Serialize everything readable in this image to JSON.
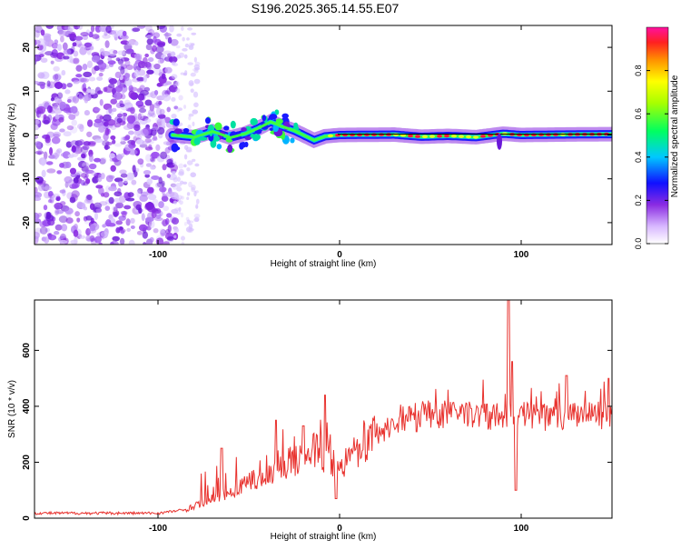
{
  "title": "S196.2025.365.14.55.E07",
  "colors": {
    "line": "#e8322e",
    "frame": "#000000"
  },
  "chart_data": [
    {
      "type": "heatmap",
      "name": "spectrogram",
      "xlabel": "Height of straight line (km)",
      "ylabel": "Frequency (Hz)",
      "xlim": [
        -168,
        150
      ],
      "ylim": [
        -25,
        25
      ],
      "xticks": [
        -100,
        0,
        100
      ],
      "xtick_labels": [
        "-100",
        "0",
        "100"
      ],
      "yticks": [
        -20,
        -10,
        0,
        10,
        20
      ],
      "ytick_labels": [
        "-20",
        "-10",
        "0",
        "10",
        "20"
      ],
      "colorbar": {
        "label": "Normalized spectral amplitude",
        "range": [
          0,
          1
        ],
        "ticks": [
          0.0,
          0.2,
          0.4,
          0.6,
          0.8
        ],
        "tick_labels": [
          "0.0",
          "0.2",
          "0.4",
          "0.6",
          "0.8"
        ]
      },
      "ridge": [
        [
          -92,
          0.0
        ],
        [
          -80,
          -0.5
        ],
        [
          -70,
          0.8
        ],
        [
          -60,
          -0.6
        ],
        [
          -52,
          0.3
        ],
        [
          -45,
          1.5
        ],
        [
          -38,
          3.0
        ],
        [
          -32,
          2.0
        ],
        [
          -25,
          1.0
        ],
        [
          -20,
          0.0
        ],
        [
          -14,
          -1.2
        ],
        [
          -8,
          -0.3
        ],
        [
          0,
          0.0
        ],
        [
          30,
          0.1
        ],
        [
          45,
          -0.4
        ],
        [
          60,
          -0.2
        ],
        [
          75,
          -0.5
        ],
        [
          90,
          0.3
        ],
        [
          100,
          0.0
        ],
        [
          120,
          0.1
        ],
        [
          150,
          0.2
        ]
      ]
    },
    {
      "type": "line",
      "name": "snr",
      "xlabel": "Height of straight line (km)",
      "ylabel": "SNR (10 * v/v)",
      "xlim": [
        -168,
        150
      ],
      "ylim": [
        0,
        780
      ],
      "xticks": [
        -100,
        0,
        100
      ],
      "xtick_labels": [
        "-100",
        "0",
        "100"
      ],
      "yticks": [
        0,
        200,
        400,
        600
      ],
      "ytick_labels": [
        "0",
        "200",
        "400",
        "600"
      ],
      "series": [
        {
          "name": "SNR",
          "baseline": [
            [
              -168,
              18
            ],
            [
              -100,
              18
            ],
            [
              -85,
              30
            ],
            [
              -70,
              70
            ],
            [
              -55,
              110
            ],
            [
              -40,
              160
            ],
            [
              -25,
              200
            ],
            [
              -12,
              250
            ],
            [
              -5,
              190
            ],
            [
              0,
              180
            ],
            [
              8,
              240
            ],
            [
              20,
              300
            ],
            [
              35,
              350
            ],
            [
              55,
              370
            ],
            [
              75,
              370
            ],
            [
              90,
              360
            ],
            [
              100,
              365
            ],
            [
              120,
              360
            ],
            [
              150,
              370
            ]
          ],
          "spikes": [
            [
              -65,
              250
            ],
            [
              -35,
              350
            ],
            [
              -20,
              330
            ],
            [
              -8,
              440
            ],
            [
              -2,
              70
            ],
            [
              93,
              780
            ],
            [
              95,
              560
            ],
            [
              97,
              100
            ],
            [
              125,
              510
            ],
            [
              148,
              500
            ]
          ]
        }
      ]
    }
  ]
}
